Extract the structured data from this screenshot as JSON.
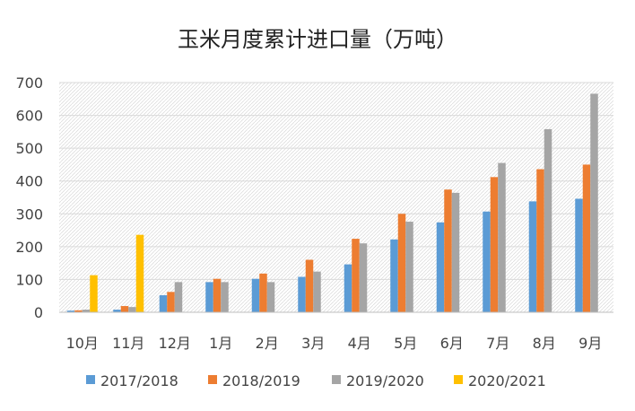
{
  "chart_data": {
    "type": "bar",
    "title": "玉米月度累计进口量（万吨）",
    "categories": [
      "10月",
      "11月",
      "12月",
      "1月",
      "2月",
      "3月",
      "4月",
      "5月",
      "6月",
      "7月",
      "8月",
      "9月"
    ],
    "ylim": [
      0,
      700
    ],
    "yticks": [
      0,
      100,
      200,
      300,
      400,
      500,
      600,
      700
    ],
    "grid": true,
    "legend": "bottom",
    "series": [
      {
        "name": "2017/2018",
        "color": "#5B9BD5",
        "values": [
          5,
          8,
          52,
          92,
          102,
          108,
          146,
          222,
          274,
          307,
          338,
          346
        ]
      },
      {
        "name": "2018/2019",
        "color": "#ED7D31",
        "values": [
          6,
          19,
          62,
          102,
          118,
          160,
          224,
          300,
          374,
          412,
          436,
          450
        ]
      },
      {
        "name": "2019/2020",
        "color": "#A5A5A5",
        "values": [
          8,
          16,
          92,
          92,
          92,
          124,
          210,
          276,
          364,
          455,
          558,
          666
        ]
      },
      {
        "name": "2020/2021",
        "color": "#FFC000",
        "values": [
          113,
          236,
          null,
          null,
          null,
          null,
          null,
          null,
          null,
          null,
          null,
          null
        ]
      }
    ]
  }
}
